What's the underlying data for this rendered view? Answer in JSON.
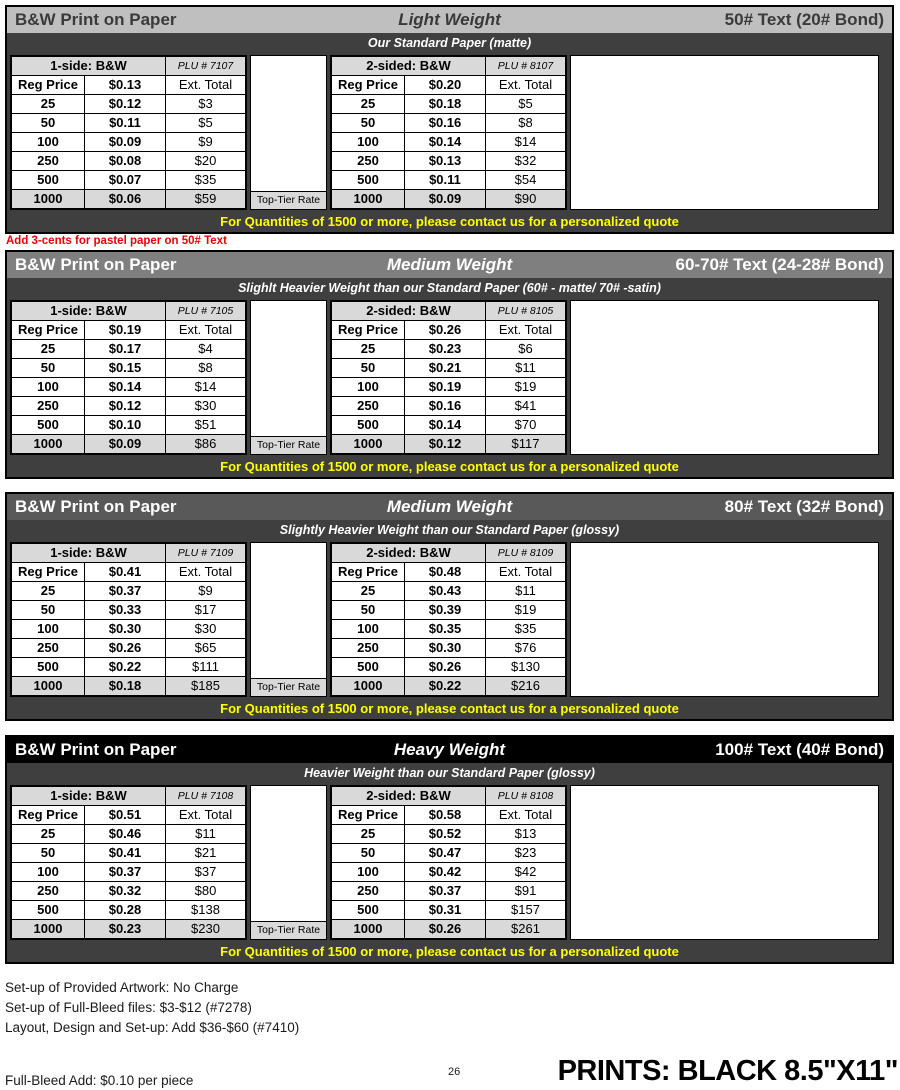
{
  "shared": {
    "quote": "For Quantities of 1500 or more, please contact us for a personalized quote",
    "top_tier_label": "Top-Tier Rate",
    "reg_price_label": "Reg Price",
    "ext_total_label": "Ext. Total"
  },
  "colors": {
    "section_light_header_bg": "#bfbfbf",
    "section_light_header_fg": "#3a3a3a",
    "section_medium_header_bg": "#7f7f7f",
    "section_medium2_header_bg": "#595959",
    "section_heavy_header_bg": "#000000",
    "band_bg": "#3f3f3f",
    "table_shade_bg": "#d9d9d9",
    "quote_fg": "#ffff00",
    "note_fg": "#e50505"
  },
  "sections": [
    {
      "title": "B&W Print on Paper",
      "weight": "Light Weight",
      "stock": "50# Text (20# Bond)",
      "subtitle": "Our Standard Paper (matte)",
      "header_bg": "#bfbfbf",
      "header_fg": "#3a3a3a",
      "note": "Add 3-cents for pastel paper on 50# Text",
      "tables": [
        {
          "label": "1-side: B&W",
          "plu": "PLU # 7107",
          "base_price": "$0.13",
          "rows": [
            [
              "25",
              "$0.12",
              "$3"
            ],
            [
              "50",
              "$0.11",
              "$5"
            ],
            [
              "100",
              "$0.09",
              "$9"
            ],
            [
              "250",
              "$0.08",
              "$20"
            ],
            [
              "500",
              "$0.07",
              "$35"
            ],
            [
              "1000",
              "$0.06",
              "$59"
            ]
          ]
        },
        {
          "label": "2-sided: B&W",
          "plu": "PLU # 8107",
          "base_price": "$0.20",
          "rows": [
            [
              "25",
              "$0.18",
              "$5"
            ],
            [
              "50",
              "$0.16",
              "$8"
            ],
            [
              "100",
              "$0.14",
              "$14"
            ],
            [
              "250",
              "$0.13",
              "$32"
            ],
            [
              "500",
              "$0.11",
              "$54"
            ],
            [
              "1000",
              "$0.09",
              "$90"
            ]
          ]
        }
      ]
    },
    {
      "title": "B&W Print on Paper",
      "weight": "Medium Weight",
      "stock": "60-70# Text (24-28# Bond)",
      "subtitle": "Slighlt Heavier Weight than our Standard Paper (60# - matte/ 70# -satin)",
      "header_bg": "#7f7f7f",
      "header_fg": "#ffffff",
      "tables": [
        {
          "label": "1-side: B&W",
          "plu": "PLU # 7105",
          "base_price": "$0.19",
          "rows": [
            [
              "25",
              "$0.17",
              "$4"
            ],
            [
              "50",
              "$0.15",
              "$8"
            ],
            [
              "100",
              "$0.14",
              "$14"
            ],
            [
              "250",
              "$0.12",
              "$30"
            ],
            [
              "500",
              "$0.10",
              "$51"
            ],
            [
              "1000",
              "$0.09",
              "$86"
            ]
          ]
        },
        {
          "label": "2-sided: B&W",
          "plu": "PLU # 8105",
          "base_price": "$0.26",
          "rows": [
            [
              "25",
              "$0.23",
              "$6"
            ],
            [
              "50",
              "$0.21",
              "$11"
            ],
            [
              "100",
              "$0.19",
              "$19"
            ],
            [
              "250",
              "$0.16",
              "$41"
            ],
            [
              "500",
              "$0.14",
              "$70"
            ],
            [
              "1000",
              "$0.12",
              "$117"
            ]
          ]
        }
      ]
    },
    {
      "title": "B&W Print on Paper",
      "weight": "Medium Weight",
      "stock": "80# Text (32# Bond)",
      "subtitle": "Slightly Heavier Weight than our Standard Paper (glossy)",
      "header_bg": "#595959",
      "header_fg": "#ffffff",
      "tables": [
        {
          "label": "1-side: B&W",
          "plu": "PLU # 7109",
          "base_price": "$0.41",
          "rows": [
            [
              "25",
              "$0.37",
              "$9"
            ],
            [
              "50",
              "$0.33",
              "$17"
            ],
            [
              "100",
              "$0.30",
              "$30"
            ],
            [
              "250",
              "$0.26",
              "$65"
            ],
            [
              "500",
              "$0.22",
              "$111"
            ],
            [
              "1000",
              "$0.18",
              "$185"
            ]
          ]
        },
        {
          "label": "2-sided: B&W",
          "plu": "PLU # 8109",
          "base_price": "$0.48",
          "rows": [
            [
              "25",
              "$0.43",
              "$11"
            ],
            [
              "50",
              "$0.39",
              "$19"
            ],
            [
              "100",
              "$0.35",
              "$35"
            ],
            [
              "250",
              "$0.30",
              "$76"
            ],
            [
              "500",
              "$0.26",
              "$130"
            ],
            [
              "1000",
              "$0.22",
              "$216"
            ]
          ]
        }
      ]
    },
    {
      "title": "B&W Print on Paper",
      "weight": "Heavy Weight",
      "stock": "100# Text (40# Bond)",
      "subtitle": "Heavier Weight than our Standard Paper (glossy)",
      "header_bg": "#000000",
      "header_fg": "#ffffff",
      "tables": [
        {
          "label": "1-side: B&W",
          "plu": "PLU # 7108",
          "base_price": "$0.51",
          "rows": [
            [
              "25",
              "$0.46",
              "$11"
            ],
            [
              "50",
              "$0.41",
              "$21"
            ],
            [
              "100",
              "$0.37",
              "$37"
            ],
            [
              "250",
              "$0.32",
              "$80"
            ],
            [
              "500",
              "$0.28",
              "$138"
            ],
            [
              "1000",
              "$0.23",
              "$230"
            ]
          ]
        },
        {
          "label": "2-sided: B&W",
          "plu": "PLU # 8108",
          "base_price": "$0.58",
          "rows": [
            [
              "25",
              "$0.52",
              "$13"
            ],
            [
              "50",
              "$0.47",
              "$23"
            ],
            [
              "100",
              "$0.42",
              "$42"
            ],
            [
              "250",
              "$0.37",
              "$91"
            ],
            [
              "500",
              "$0.31",
              "$157"
            ],
            [
              "1000",
              "$0.26",
              "$261"
            ]
          ]
        }
      ]
    }
  ],
  "footer": {
    "lines": [
      "Set-up of Provided Artwork: No Charge",
      "Set-up of Full-Bleed files: $3-$12 (#7278)",
      "Layout, Design and Set-up: Add $36-$60 (#7410)"
    ],
    "full_bleed_note": "Full-Bleed Add: $0.10 per piece",
    "page_number": "26",
    "big_title": "PRINTS: BLACK 8.5\"X11\""
  }
}
